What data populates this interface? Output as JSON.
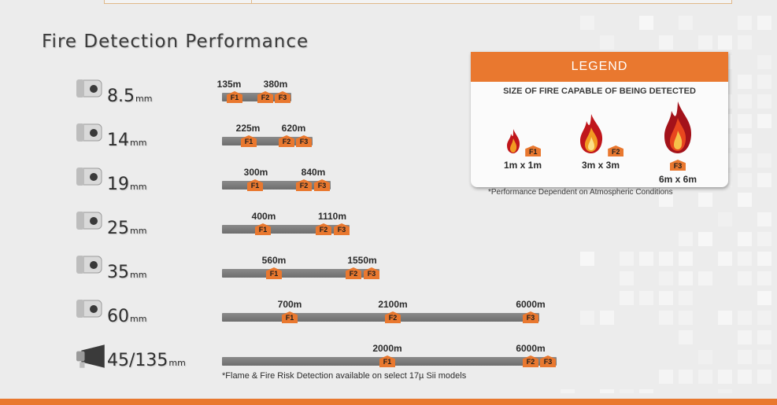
{
  "title": "Fire Detection Performance",
  "colors": {
    "accent": "#e9782f",
    "bar": "#7a7a7a",
    "background": "#ececec"
  },
  "markers": {
    "f1": "F1",
    "f2": "F2",
    "f3": "F3"
  },
  "rows": [
    {
      "lens": "8.5",
      "unit": "mm",
      "camera_icon": "bullet-camera-icon",
      "d1": "135m",
      "d2": "380m",
      "d3": ""
    },
    {
      "lens": "14",
      "unit": "mm",
      "camera_icon": "bullet-camera-icon",
      "d1": "225m",
      "d2": "620m",
      "d3": ""
    },
    {
      "lens": "19",
      "unit": "mm",
      "camera_icon": "bullet-camera-icon",
      "d1": "300m",
      "d2": "840m",
      "d3": ""
    },
    {
      "lens": "25",
      "unit": "mm",
      "camera_icon": "bullet-camera-icon",
      "d1": "400m",
      "d2": "1110m",
      "d3": ""
    },
    {
      "lens": "35",
      "unit": "mm",
      "camera_icon": "bullet-camera-icon",
      "d1": "560m",
      "d2": "1550m",
      "d3": ""
    },
    {
      "lens": "60",
      "unit": "mm",
      "camera_icon": "bullet-camera-icon",
      "d1": "700m",
      "d2": "2100m",
      "d3": "6000m"
    },
    {
      "lens": "45/135",
      "unit": "mm",
      "camera_icon": "ptz-camera-icon",
      "d1": "2000m",
      "d2": "6000m",
      "d3": ""
    }
  ],
  "footnote": "*Flame & Fire Risk Detection available on select 17µ Sii models",
  "legend": {
    "heading": "LEGEND",
    "subheading": "SIZE OF FIRE CAPABLE OF BEING DETECTED",
    "items": [
      {
        "tag": "F1",
        "size": "1m x 1m",
        "icon": "small-flame-icon"
      },
      {
        "tag": "F2",
        "size": "3m x 3m",
        "icon": "medium-flame-icon"
      },
      {
        "tag": "F3",
        "size": "6m x 6m",
        "icon": "large-flame-icon"
      }
    ],
    "note": "*Performance Dependent on Atmospheric Conditions"
  }
}
